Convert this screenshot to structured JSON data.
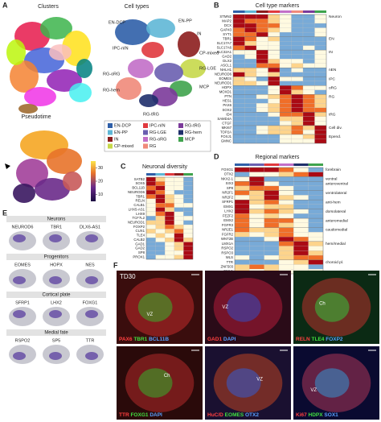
{
  "panel_a": {
    "label": "A",
    "clusters_title": "Clusters",
    "cell_types_title": "Cell types",
    "pseudotime_title": "Pseudotime",
    "map_labels": [
      "EN-DCP",
      "EN-PP",
      "IN",
      "IPC-nIN",
      "CP-mixed",
      "RG-LGE",
      "RG-oRG",
      "MCP",
      "RG-hem",
      "RG-tRG"
    ],
    "legend": [
      {
        "name": "EN-DCP",
        "color": "#2f5fa8"
      },
      {
        "name": "EN-PP",
        "color": "#5fb7d6"
      },
      {
        "name": "IN",
        "color": "#8c1d1d"
      },
      {
        "name": "CP-mixed",
        "color": "#c7d84a"
      },
      {
        "name": "IPC-nIN",
        "color": "#e0393e"
      },
      {
        "name": "RG-LGE",
        "color": "#6a5fb0"
      },
      {
        "name": "RG-oRG",
        "color": "#c26fc8"
      },
      {
        "name": "RG",
        "color": "#f08a7a"
      },
      {
        "name": "RG-tRG",
        "color": "#7b3a9a"
      },
      {
        "name": "RG-hem",
        "color": "#1f2f6b"
      },
      {
        "name": "MCP",
        "color": "#3fa34d"
      }
    ],
    "colorbar": {
      "lim": [
        5,
        35
      ],
      "ticks": [
        10,
        20,
        30
      ]
    }
  },
  "panel_b": {
    "label": "B",
    "title": "Cell type markers",
    "column_colors": [
      "#2f5fa8",
      "#5fb7d6",
      "#8c1d1d",
      "#e0393e",
      "#c26fc8",
      "#f08a7a",
      "#7b3a9a",
      "#3fa34d"
    ],
    "genes": [
      "STMN2",
      "MAP2",
      "DCX",
      "GAP43",
      "SYT1",
      "TBR1",
      "SLC17A7",
      "SLC17A6",
      "SLC32A1",
      "GAD2",
      "DLX2",
      "ASCL1",
      "NHLH1",
      "NEUROD6",
      "EOMES",
      "NEUROD1",
      "HOPX",
      "MOXD1",
      "PTN",
      "HES1",
      "PAX6",
      "SOX2",
      "ID4",
      "SAMD4A",
      "CTGF",
      "MKI67",
      "TOP2A",
      "FOXJ1",
      "GMNC"
    ],
    "groups": [
      "Neuron",
      "EN",
      "IN",
      "nEN",
      "IPC",
      "oRG",
      "RG",
      "tRG",
      "Cell div.",
      "Epend."
    ],
    "values": [
      [
        3,
        3,
        3,
        1,
        0,
        -1,
        -1,
        0
      ],
      [
        3,
        2,
        2,
        1,
        0,
        -1,
        -1,
        0
      ],
      [
        3,
        3,
        2,
        2,
        0,
        -1,
        -1,
        -1
      ],
      [
        2,
        3,
        2,
        1,
        0,
        -1,
        -1,
        0
      ],
      [
        2,
        2,
        3,
        0,
        -1,
        -1,
        -1,
        0
      ],
      [
        3,
        2,
        0,
        1,
        -1,
        -1,
        -1,
        -1
      ],
      [
        3,
        1,
        0,
        0,
        -1,
        -1,
        -1,
        -1
      ],
      [
        2,
        3,
        0,
        0,
        -1,
        -1,
        0,
        -1
      ],
      [
        0,
        0,
        3,
        0,
        -1,
        -1,
        -1,
        0
      ],
      [
        -1,
        0,
        3,
        0,
        -1,
        -1,
        -1,
        0
      ],
      [
        -1,
        -1,
        3,
        1,
        0,
        0,
        -1,
        0
      ],
      [
        -1,
        -1,
        2,
        2,
        0,
        1,
        0,
        0
      ],
      [
        1,
        1,
        0,
        3,
        -1,
        0,
        -1,
        -1
      ],
      [
        3,
        1,
        0,
        1,
        -1,
        -1,
        -1,
        -1
      ],
      [
        1,
        0,
        -1,
        3,
        0,
        0,
        -1,
        -1
      ],
      [
        1,
        1,
        0,
        3,
        -1,
        -1,
        -1,
        -1
      ],
      [
        -1,
        -1,
        -1,
        0,
        3,
        2,
        0,
        0
      ],
      [
        -1,
        -1,
        -1,
        0,
        3,
        1,
        0,
        -1
      ],
      [
        -1,
        -1,
        0,
        1,
        2,
        3,
        2,
        1
      ],
      [
        -1,
        -1,
        -1,
        0,
        2,
        3,
        2,
        1
      ],
      [
        -1,
        -1,
        0,
        1,
        2,
        3,
        2,
        1
      ],
      [
        -1,
        -1,
        0,
        1,
        2,
        3,
        2,
        2
      ],
      [
        -1,
        -1,
        -1,
        0,
        2,
        2,
        3,
        1
      ],
      [
        -1,
        -1,
        -1,
        -1,
        1,
        1,
        3,
        0
      ],
      [
        -1,
        -1,
        -1,
        -1,
        0,
        1,
        3,
        0
      ],
      [
        -1,
        -1,
        0,
        1,
        1,
        2,
        1,
        3
      ],
      [
        -1,
        -1,
        0,
        1,
        1,
        2,
        0,
        3
      ],
      [
        -1,
        -1,
        -1,
        -1,
        0,
        0,
        1,
        3
      ],
      [
        -1,
        -1,
        -1,
        -1,
        0,
        0,
        0,
        3
      ]
    ]
  },
  "panel_c": {
    "label": "C",
    "title": "Neuronal diversity",
    "column_colors": [
      "#2f5fa8",
      "#5fb7d6",
      "#e0393e",
      "#8c1d1d",
      "#3fa34d"
    ],
    "genes": [
      "SATB2",
      "SOX5",
      "BCL11B",
      "NEUROD6",
      "TBR1",
      "RELN",
      "CALB1",
      "LHX5-AS1",
      "LHX9",
      "TCF7L2",
      "NEUROD1",
      "FOXP2",
      "CUX1",
      "TLE4",
      "CALB2",
      "GAD1",
      "GAD2",
      "SP8",
      "PROX1"
    ],
    "values": [
      [
        3,
        1,
        0,
        0,
        -1
      ],
      [
        3,
        2,
        0,
        0,
        -1
      ],
      [
        2,
        3,
        0,
        0,
        -1
      ],
      [
        3,
        2,
        0,
        -1,
        -1
      ],
      [
        2,
        3,
        1,
        0,
        -1
      ],
      [
        0,
        3,
        1,
        0,
        -1
      ],
      [
        0,
        2,
        2,
        0,
        0
      ],
      [
        0,
        3,
        1,
        -1,
        -1
      ],
      [
        0,
        2,
        3,
        0,
        -1
      ],
      [
        -1,
        1,
        3,
        0,
        0
      ],
      [
        1,
        1,
        3,
        0,
        -1
      ],
      [
        0,
        1,
        2,
        1,
        0
      ],
      [
        1,
        0,
        1,
        2,
        0
      ],
      [
        0,
        1,
        0,
        3,
        0
      ],
      [
        -1,
        0,
        1,
        3,
        1
      ],
      [
        -1,
        -1,
        0,
        1,
        3
      ],
      [
        -1,
        -1,
        0,
        1,
        3
      ],
      [
        -1,
        -1,
        0,
        0,
        3
      ],
      [
        -1,
        0,
        0,
        1,
        3
      ]
    ]
  },
  "panel_d": {
    "label": "D",
    "title": "Regional markers",
    "column_colors": [
      "#2f5fa8",
      "#6a5fb0",
      "#e0393e",
      "#c26fc8",
      "#1f2f6b",
      "#3fa34d"
    ],
    "genes": [
      "FOXG1",
      "OTX2",
      "NKX2-1",
      "SIX3",
      "SP8",
      "NR2F1",
      "NR2F2",
      "SFRP1",
      "EMX1",
      "LHX2",
      "FEZF2",
      "EMX2",
      "FGFR3",
      "NR2E1",
      "FGFR2",
      "WNT2B",
      "LMX1A",
      "RSPO2",
      "RSPO3",
      "WLS",
      "TTR",
      "ZNF503",
      "TPBG"
    ],
    "groups": [
      "forebrain",
      "ventral",
      "anteroventral",
      "ventrolateral",
      "anti-hem",
      "dorsolateral",
      "anteromedial",
      "caudomedial",
      "hem/medial",
      "choroid pl."
    ],
    "values": [
      [
        3,
        3,
        3,
        2,
        0,
        -1
      ],
      [
        -1,
        0,
        0,
        1,
        2,
        3
      ],
      [
        0,
        3,
        -1,
        -1,
        -1,
        -1
      ],
      [
        2,
        3,
        0,
        -1,
        -1,
        -1
      ],
      [
        1,
        2,
        2,
        0,
        -1,
        -1
      ],
      [
        2,
        1,
        3,
        0,
        -1,
        -1
      ],
      [
        0,
        1,
        3,
        1,
        0,
        -1
      ],
      [
        3,
        1,
        2,
        0,
        -1,
        -1
      ],
      [
        3,
        0,
        1,
        1,
        -1,
        -1
      ],
      [
        3,
        1,
        2,
        1,
        0,
        -1
      ],
      [
        2,
        0,
        1,
        0,
        -1,
        -1
      ],
      [
        2,
        0,
        2,
        2,
        0,
        -1
      ],
      [
        2,
        0,
        2,
        1,
        0,
        -1
      ],
      [
        2,
        1,
        1,
        2,
        0,
        -1
      ],
      [
        1,
        0,
        1,
        2,
        0,
        0
      ],
      [
        -1,
        -1,
        0,
        3,
        2,
        0
      ],
      [
        -1,
        -1,
        -1,
        2,
        3,
        1
      ],
      [
        -1,
        -1,
        -1,
        1,
        3,
        0
      ],
      [
        -1,
        -1,
        -1,
        1,
        3,
        1
      ],
      [
        0,
        -1,
        0,
        1,
        2,
        2
      ],
      [
        -1,
        -1,
        -1,
        0,
        1,
        3
      ],
      [
        1,
        2,
        1,
        0,
        0,
        -1
      ],
      [
        1,
        0,
        1,
        0,
        0,
        0
      ]
    ]
  },
  "panel_e": {
    "label": "E",
    "groups": [
      {
        "title": "Neurons",
        "genes": [
          "NEUROD6",
          "TBR1",
          "DLX6-AS1"
        ]
      },
      {
        "title": "Progenitors",
        "genes": [
          "EOMES",
          "HOPX",
          "NES"
        ]
      },
      {
        "title": "Cortical plate",
        "genes": [
          "SFRP1",
          "LHX2",
          "FOXG1"
        ]
      },
      {
        "title": "Medial fate",
        "genes": [
          "RSPO2",
          "SP5",
          "TTR"
        ]
      }
    ]
  },
  "panel_f": {
    "label": "F",
    "stage": "TD30",
    "tags": [
      "VZ",
      "VZ",
      "Ch",
      "Ch",
      "VZ",
      "VZ"
    ],
    "images": [
      [
        {
          "text": "PAX6",
          "color": "#ff4040"
        },
        {
          "text": "TBR1",
          "color": "#40e040"
        },
        {
          "text": "BCL11B",
          "color": "#5aa0ff"
        }
      ],
      [
        {
          "text": "GAD1",
          "color": "#ff4040"
        },
        {
          "text": "DAPI",
          "color": "#5aa0ff"
        }
      ],
      [
        {
          "text": "RELN",
          "color": "#ff4040"
        },
        {
          "text": "TLE4",
          "color": "#40e040"
        },
        {
          "text": "FOXP2",
          "color": "#5aa0ff"
        }
      ],
      [
        {
          "text": "TTR",
          "color": "#ff4040"
        },
        {
          "text": "FOXG1",
          "color": "#40e040"
        },
        {
          "text": "DAPI",
          "color": "#5aa0ff"
        }
      ],
      [
        {
          "text": "HuC/D",
          "color": "#ff4040"
        },
        {
          "text": "EOMES",
          "color": "#40e040"
        },
        {
          "text": "OTX2",
          "color": "#5aa0ff"
        }
      ],
      [
        {
          "text": "Ki67",
          "color": "#ff4040"
        },
        {
          "text": "HDPX",
          "color": "#40e040"
        },
        {
          "text": "SOX1",
          "color": "#5aa0ff"
        }
      ]
    ]
  }
}
